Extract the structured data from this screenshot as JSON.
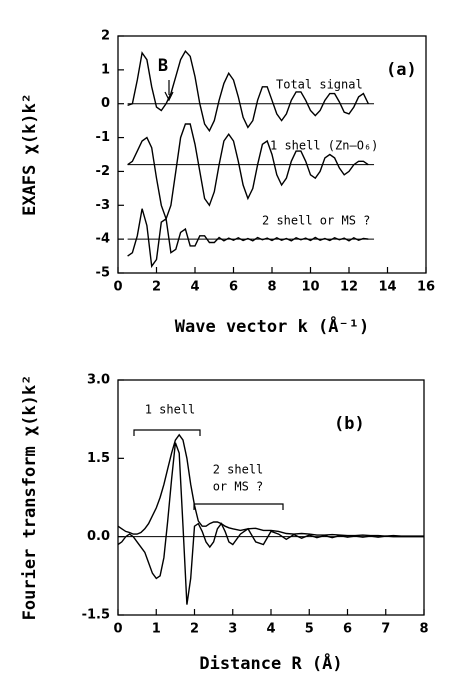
{
  "chart_data": [
    {
      "type": "line",
      "ylabel": "EXAFS χ(k)k²",
      "xlabel": "Wave vector k (Å⁻¹)",
      "annotations": [
        "(a)",
        "B",
        "Total signal",
        "1 shell (Zn–O₆)",
        "2 shell or MS ?"
      ],
      "xlim": [
        0,
        16
      ],
      "xticks": [
        0,
        2,
        4,
        6,
        8,
        10,
        12,
        14,
        16
      ],
      "ylim": [
        -5,
        2
      ],
      "yticks": [
        -5,
        -4,
        -3,
        -2,
        -1,
        0,
        1,
        2
      ],
      "hlines": [
        0,
        -1.8,
        -4
      ],
      "x": [
        0.5,
        0.75,
        1.0,
        1.25,
        1.5,
        1.75,
        2.0,
        2.25,
        2.5,
        2.75,
        3.0,
        3.25,
        3.5,
        3.75,
        4.0,
        4.25,
        4.5,
        4.75,
        5.0,
        5.25,
        5.5,
        5.75,
        6.0,
        6.25,
        6.5,
        6.75,
        7.0,
        7.25,
        7.5,
        7.75,
        8.0,
        8.25,
        8.5,
        8.75,
        9.0,
        9.25,
        9.5,
        9.75,
        10.0,
        10.25,
        10.5,
        10.75,
        11.0,
        11.25,
        11.5,
        11.75,
        12.0,
        12.25,
        12.5,
        12.75,
        13.0
      ],
      "series": [
        {
          "color": "#000000",
          "values": [
            -0.05,
            0.0,
            0.7,
            1.5,
            1.3,
            0.5,
            -0.1,
            -0.2,
            0.0,
            0.3,
            0.8,
            1.3,
            1.55,
            1.4,
            0.8,
            0.0,
            -0.6,
            -0.8,
            -0.5,
            0.1,
            0.6,
            0.9,
            0.7,
            0.2,
            -0.4,
            -0.7,
            -0.5,
            0.1,
            0.5,
            0.5,
            0.1,
            -0.3,
            -0.5,
            -0.3,
            0.1,
            0.35,
            0.35,
            0.1,
            -0.2,
            -0.35,
            -0.2,
            0.1,
            0.3,
            0.3,
            0.05,
            -0.25,
            -0.3,
            -0.1,
            0.2,
            0.3,
            0.0
          ]
        },
        {
          "color": "#000000",
          "values": [
            -1.8,
            -1.7,
            -1.4,
            -1.1,
            -1.0,
            -1.3,
            -2.2,
            -3.0,
            -3.4,
            -3.0,
            -2.0,
            -1.0,
            -0.6,
            -0.6,
            -1.2,
            -2.0,
            -2.8,
            -3.0,
            -2.6,
            -1.8,
            -1.1,
            -0.9,
            -1.1,
            -1.7,
            -2.4,
            -2.8,
            -2.5,
            -1.8,
            -1.2,
            -1.1,
            -1.5,
            -2.1,
            -2.4,
            -2.2,
            -1.7,
            -1.4,
            -1.4,
            -1.7,
            -2.1,
            -2.2,
            -2.0,
            -1.6,
            -1.5,
            -1.6,
            -1.9,
            -2.1,
            -2.0,
            -1.8,
            -1.7,
            -1.7,
            -1.8
          ]
        },
        {
          "color": "#000000",
          "values": [
            -4.5,
            -4.4,
            -3.9,
            -3.1,
            -3.6,
            -4.8,
            -4.6,
            -3.5,
            -3.4,
            -4.4,
            -4.3,
            -3.8,
            -3.7,
            -4.2,
            -4.2,
            -3.9,
            -3.9,
            -4.1,
            -4.1,
            -3.95,
            -4.05,
            -3.97,
            -4.03,
            -3.96,
            -4.04,
            -3.98,
            -4.05,
            -3.95,
            -4.02,
            -3.97,
            -4.04,
            -3.96,
            -4.03,
            -3.98,
            -4.05,
            -3.96,
            -4.02,
            -3.97,
            -4.04,
            -3.95,
            -4.03,
            -3.98,
            -4.04,
            -3.96,
            -4.02,
            -3.97,
            -4.05,
            -3.96,
            -4.03,
            -3.98,
            -4.0
          ]
        }
      ]
    },
    {
      "type": "line",
      "ylabel": "Fourier transform χ(k)k²",
      "xlabel": "Distance R (Å)",
      "annotations": [
        "(b)",
        "1 shell",
        "2 shell",
        "or MS ?"
      ],
      "xlim": [
        0,
        8
      ],
      "xticks": [
        0,
        1,
        2,
        3,
        4,
        5,
        6,
        7,
        8
      ],
      "ylim": [
        -1.5,
        3
      ],
      "yticks": [
        -1.5,
        {
          "value": 0,
          "label": "0.0"
        },
        1.5,
        {
          "value": 3,
          "label": "3.0"
        }
      ],
      "hlines": [
        0
      ],
      "x": [
        0,
        0.1,
        0.2,
        0.3,
        0.4,
        0.5,
        0.6,
        0.7,
        0.8,
        0.9,
        1.0,
        1.1,
        1.2,
        1.3,
        1.4,
        1.5,
        1.6,
        1.7,
        1.8,
        1.9,
        2.0,
        2.1,
        2.2,
        2.3,
        2.4,
        2.5,
        2.6,
        2.7,
        2.8,
        2.9,
        3.0,
        3.2,
        3.4,
        3.6,
        3.8,
        4.0,
        4.2,
        4.4,
        4.6,
        4.8,
        5.0,
        5.2,
        5.4,
        5.6,
        5.8,
        6.0,
        6.2,
        6.4,
        6.6,
        6.8,
        7.0,
        7.2,
        7.4,
        7.6,
        7.8,
        8.0
      ],
      "series": [
        {
          "color": "#000000",
          "values": [
            0.2,
            0.15,
            0.1,
            0.08,
            0.05,
            0.05,
            0.08,
            0.15,
            0.25,
            0.4,
            0.55,
            0.75,
            1.0,
            1.3,
            1.6,
            1.85,
            1.95,
            1.85,
            1.5,
            1.0,
            0.6,
            0.3,
            0.2,
            0.2,
            0.25,
            0.28,
            0.28,
            0.25,
            0.2,
            0.17,
            0.15,
            0.12,
            0.15,
            0.16,
            0.12,
            0.12,
            0.1,
            0.06,
            0.05,
            0.06,
            0.05,
            0.03,
            0.03,
            0.04,
            0.03,
            0.02,
            0.02,
            0.03,
            0.02,
            0.02,
            0.01,
            0.02,
            0.01,
            0.01,
            0.01,
            0.01
          ]
        },
        {
          "color": "#000000",
          "values": [
            -0.15,
            -0.1,
            0.0,
            0.05,
            0.0,
            -0.1,
            -0.2,
            -0.3,
            -0.5,
            -0.7,
            -0.8,
            -0.75,
            -0.4,
            0.3,
            1.1,
            1.8,
            1.6,
            0.2,
            -1.3,
            -0.8,
            0.2,
            0.25,
            0.1,
            -0.1,
            -0.2,
            -0.1,
            0.15,
            0.25,
            0.1,
            -0.1,
            -0.15,
            0.05,
            0.15,
            -0.1,
            -0.15,
            0.1,
            0.05,
            -0.05,
            0.04,
            -0.03,
            0.03,
            -0.02,
            0.02,
            -0.02,
            0.02,
            -0.01,
            0.01,
            -0.01,
            0.01,
            -0.01,
            0.01,
            0.0,
            0.0,
            0.0,
            0.0,
            0.0
          ]
        }
      ]
    }
  ]
}
